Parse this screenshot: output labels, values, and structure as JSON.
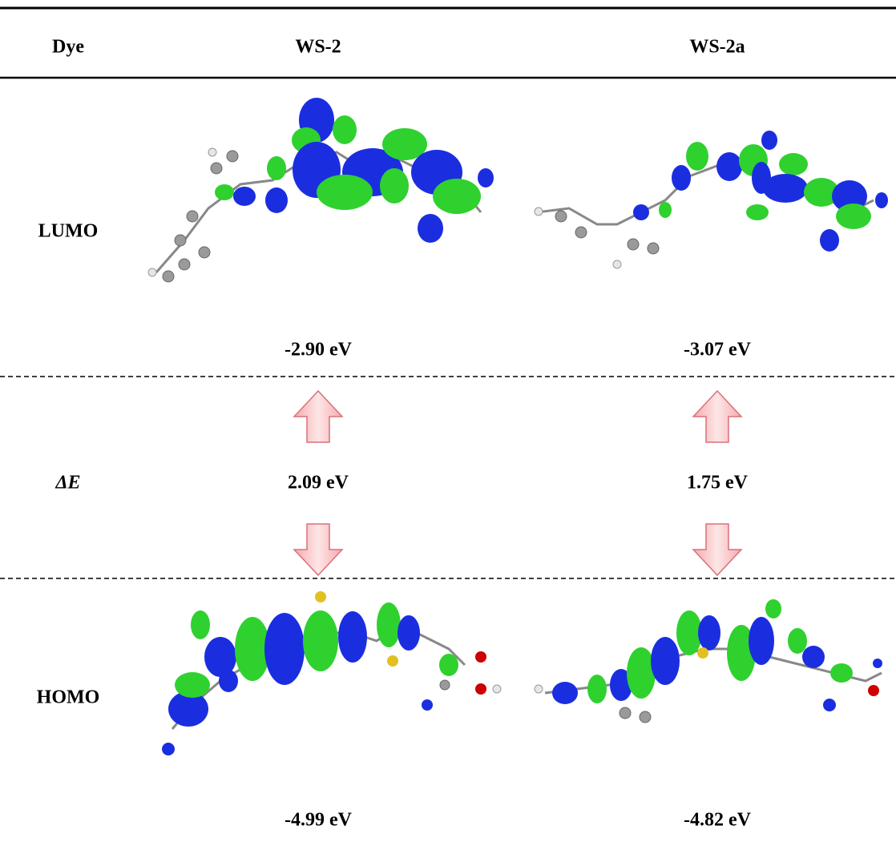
{
  "table": {
    "header": [
      "Dye",
      "WS-2",
      "WS-2a"
    ],
    "rows": [
      [
        "LUMO",
        "-2.90 eV",
        "-3.07 eV"
      ],
      [
        "ΔE",
        "2.09 eV",
        "1.75 eV"
      ],
      [
        "HOMO",
        "-4.99 eV",
        "-4.82 eV"
      ]
    ]
  }
}
